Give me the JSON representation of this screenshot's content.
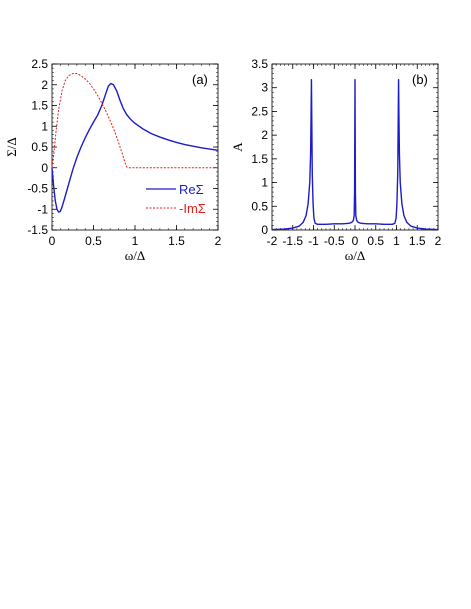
{
  "chart_data": [
    {
      "type": "line",
      "panel_label": "(a)",
      "xlabel": "ω/Δ",
      "ylabel": "Σ/Δ",
      "xlim": [
        0,
        2
      ],
      "ylim": [
        -1.5,
        2.5
      ],
      "x_ticks": [
        "0",
        "0.5",
        "1",
        "1.5",
        "2"
      ],
      "y_ticks": [
        "-1.5",
        "-1",
        "-0.5",
        "0",
        "0.5",
        "1",
        "1.5",
        "2",
        "2.5"
      ],
      "legend_position": "center-right",
      "series": [
        {
          "name": "ReΣ",
          "color": "#1c1cc8",
          "style": "solid",
          "points": [
            [
              0,
              0
            ],
            [
              0.02,
              -0.45
            ],
            [
              0.04,
              -0.8
            ],
            [
              0.06,
              -1.0
            ],
            [
              0.08,
              -1.07
            ],
            [
              0.1,
              -1.05
            ],
            [
              0.12,
              -0.95
            ],
            [
              0.15,
              -0.75
            ],
            [
              0.2,
              -0.4
            ],
            [
              0.25,
              -0.05
            ],
            [
              0.3,
              0.25
            ],
            [
              0.35,
              0.5
            ],
            [
              0.4,
              0.72
            ],
            [
              0.45,
              0.92
            ],
            [
              0.5,
              1.1
            ],
            [
              0.55,
              1.27
            ],
            [
              0.6,
              1.5
            ],
            [
              0.65,
              1.8
            ],
            [
              0.68,
              1.97
            ],
            [
              0.71,
              2.03
            ],
            [
              0.74,
              2.0
            ],
            [
              0.78,
              1.85
            ],
            [
              0.82,
              1.62
            ],
            [
              0.86,
              1.42
            ],
            [
              0.9,
              1.28
            ],
            [
              0.95,
              1.16
            ],
            [
              1.0,
              1.07
            ],
            [
              1.1,
              0.93
            ],
            [
              1.2,
              0.82
            ],
            [
              1.3,
              0.74
            ],
            [
              1.4,
              0.67
            ],
            [
              1.5,
              0.61
            ],
            [
              1.6,
              0.56
            ],
            [
              1.7,
              0.52
            ],
            [
              1.8,
              0.48
            ],
            [
              1.9,
              0.45
            ],
            [
              2.0,
              0.42
            ]
          ]
        },
        {
          "name": "-ImΣ",
          "color": "#e02020",
          "style": "dashed",
          "points": [
            [
              0,
              0
            ],
            [
              0.02,
              0.3
            ],
            [
              0.05,
              0.9
            ],
            [
              0.08,
              1.4
            ],
            [
              0.12,
              1.85
            ],
            [
              0.16,
              2.1
            ],
            [
              0.2,
              2.22
            ],
            [
              0.25,
              2.27
            ],
            [
              0.3,
              2.27
            ],
            [
              0.35,
              2.22
            ],
            [
              0.4,
              2.14
            ],
            [
              0.45,
              2.04
            ],
            [
              0.5,
              1.9
            ],
            [
              0.55,
              1.74
            ],
            [
              0.6,
              1.56
            ],
            [
              0.65,
              1.36
            ],
            [
              0.7,
              1.14
            ],
            [
              0.75,
              0.9
            ],
            [
              0.8,
              0.62
            ],
            [
              0.85,
              0.32
            ],
            [
              0.88,
              0.12
            ],
            [
              0.9,
              0.02
            ],
            [
              0.92,
              0
            ],
            [
              1.0,
              0
            ],
            [
              1.5,
              0
            ],
            [
              2.0,
              0
            ]
          ]
        }
      ]
    },
    {
      "type": "line",
      "panel_label": "(b)",
      "xlabel": "ω/Δ",
      "ylabel": "A",
      "xlim": [
        -2,
        2
      ],
      "ylim": [
        0,
        3.5
      ],
      "x_ticks": [
        "-2",
        "-1.5",
        "-1",
        "-0.5",
        "0",
        "0.5",
        "1",
        "1.5",
        "2"
      ],
      "y_ticks": [
        "0",
        "0.5",
        "1",
        "1.5",
        "2",
        "2.5",
        "3",
        "3.5"
      ],
      "series": [
        {
          "color": "#1c1cc8",
          "style": "solid",
          "points": [
            [
              -2,
              0.01
            ],
            [
              -1.7,
              0.02
            ],
            [
              -1.5,
              0.04
            ],
            [
              -1.35,
              0.08
            ],
            [
              -1.25,
              0.16
            ],
            [
              -1.18,
              0.3
            ],
            [
              -1.13,
              0.55
            ],
            [
              -1.09,
              1.0
            ],
            [
              -1.07,
              1.6
            ],
            [
              -1.06,
              2.3
            ],
            [
              -1.05,
              3.17
            ],
            [
              -1.04,
              2.2
            ],
            [
              -1.03,
              1.2
            ],
            [
              -1.01,
              0.55
            ],
            [
              -0.99,
              0.25
            ],
            [
              -0.96,
              0.14
            ],
            [
              -0.9,
              0.12
            ],
            [
              -0.7,
              0.12
            ],
            [
              -0.5,
              0.13
            ],
            [
              -0.3,
              0.13
            ],
            [
              -0.15,
              0.14
            ],
            [
              -0.08,
              0.16
            ],
            [
              -0.04,
              0.2
            ],
            [
              -0.02,
              0.3
            ],
            [
              -0.01,
              0.8
            ],
            [
              0,
              3.17
            ],
            [
              0.01,
              0.8
            ],
            [
              0.02,
              0.3
            ],
            [
              0.04,
              0.2
            ],
            [
              0.08,
              0.16
            ],
            [
              0.15,
              0.14
            ],
            [
              0.3,
              0.13
            ],
            [
              0.5,
              0.13
            ],
            [
              0.7,
              0.12
            ],
            [
              0.9,
              0.12
            ],
            [
              0.96,
              0.14
            ],
            [
              0.99,
              0.25
            ],
            [
              1.01,
              0.55
            ],
            [
              1.03,
              1.2
            ],
            [
              1.04,
              2.2
            ],
            [
              1.05,
              3.17
            ],
            [
              1.06,
              2.3
            ],
            [
              1.07,
              1.6
            ],
            [
              1.09,
              1.0
            ],
            [
              1.13,
              0.55
            ],
            [
              1.18,
              0.3
            ],
            [
              1.25,
              0.16
            ],
            [
              1.35,
              0.08
            ],
            [
              1.5,
              0.04
            ],
            [
              1.7,
              0.02
            ],
            [
              2,
              0.01
            ]
          ]
        }
      ]
    }
  ]
}
